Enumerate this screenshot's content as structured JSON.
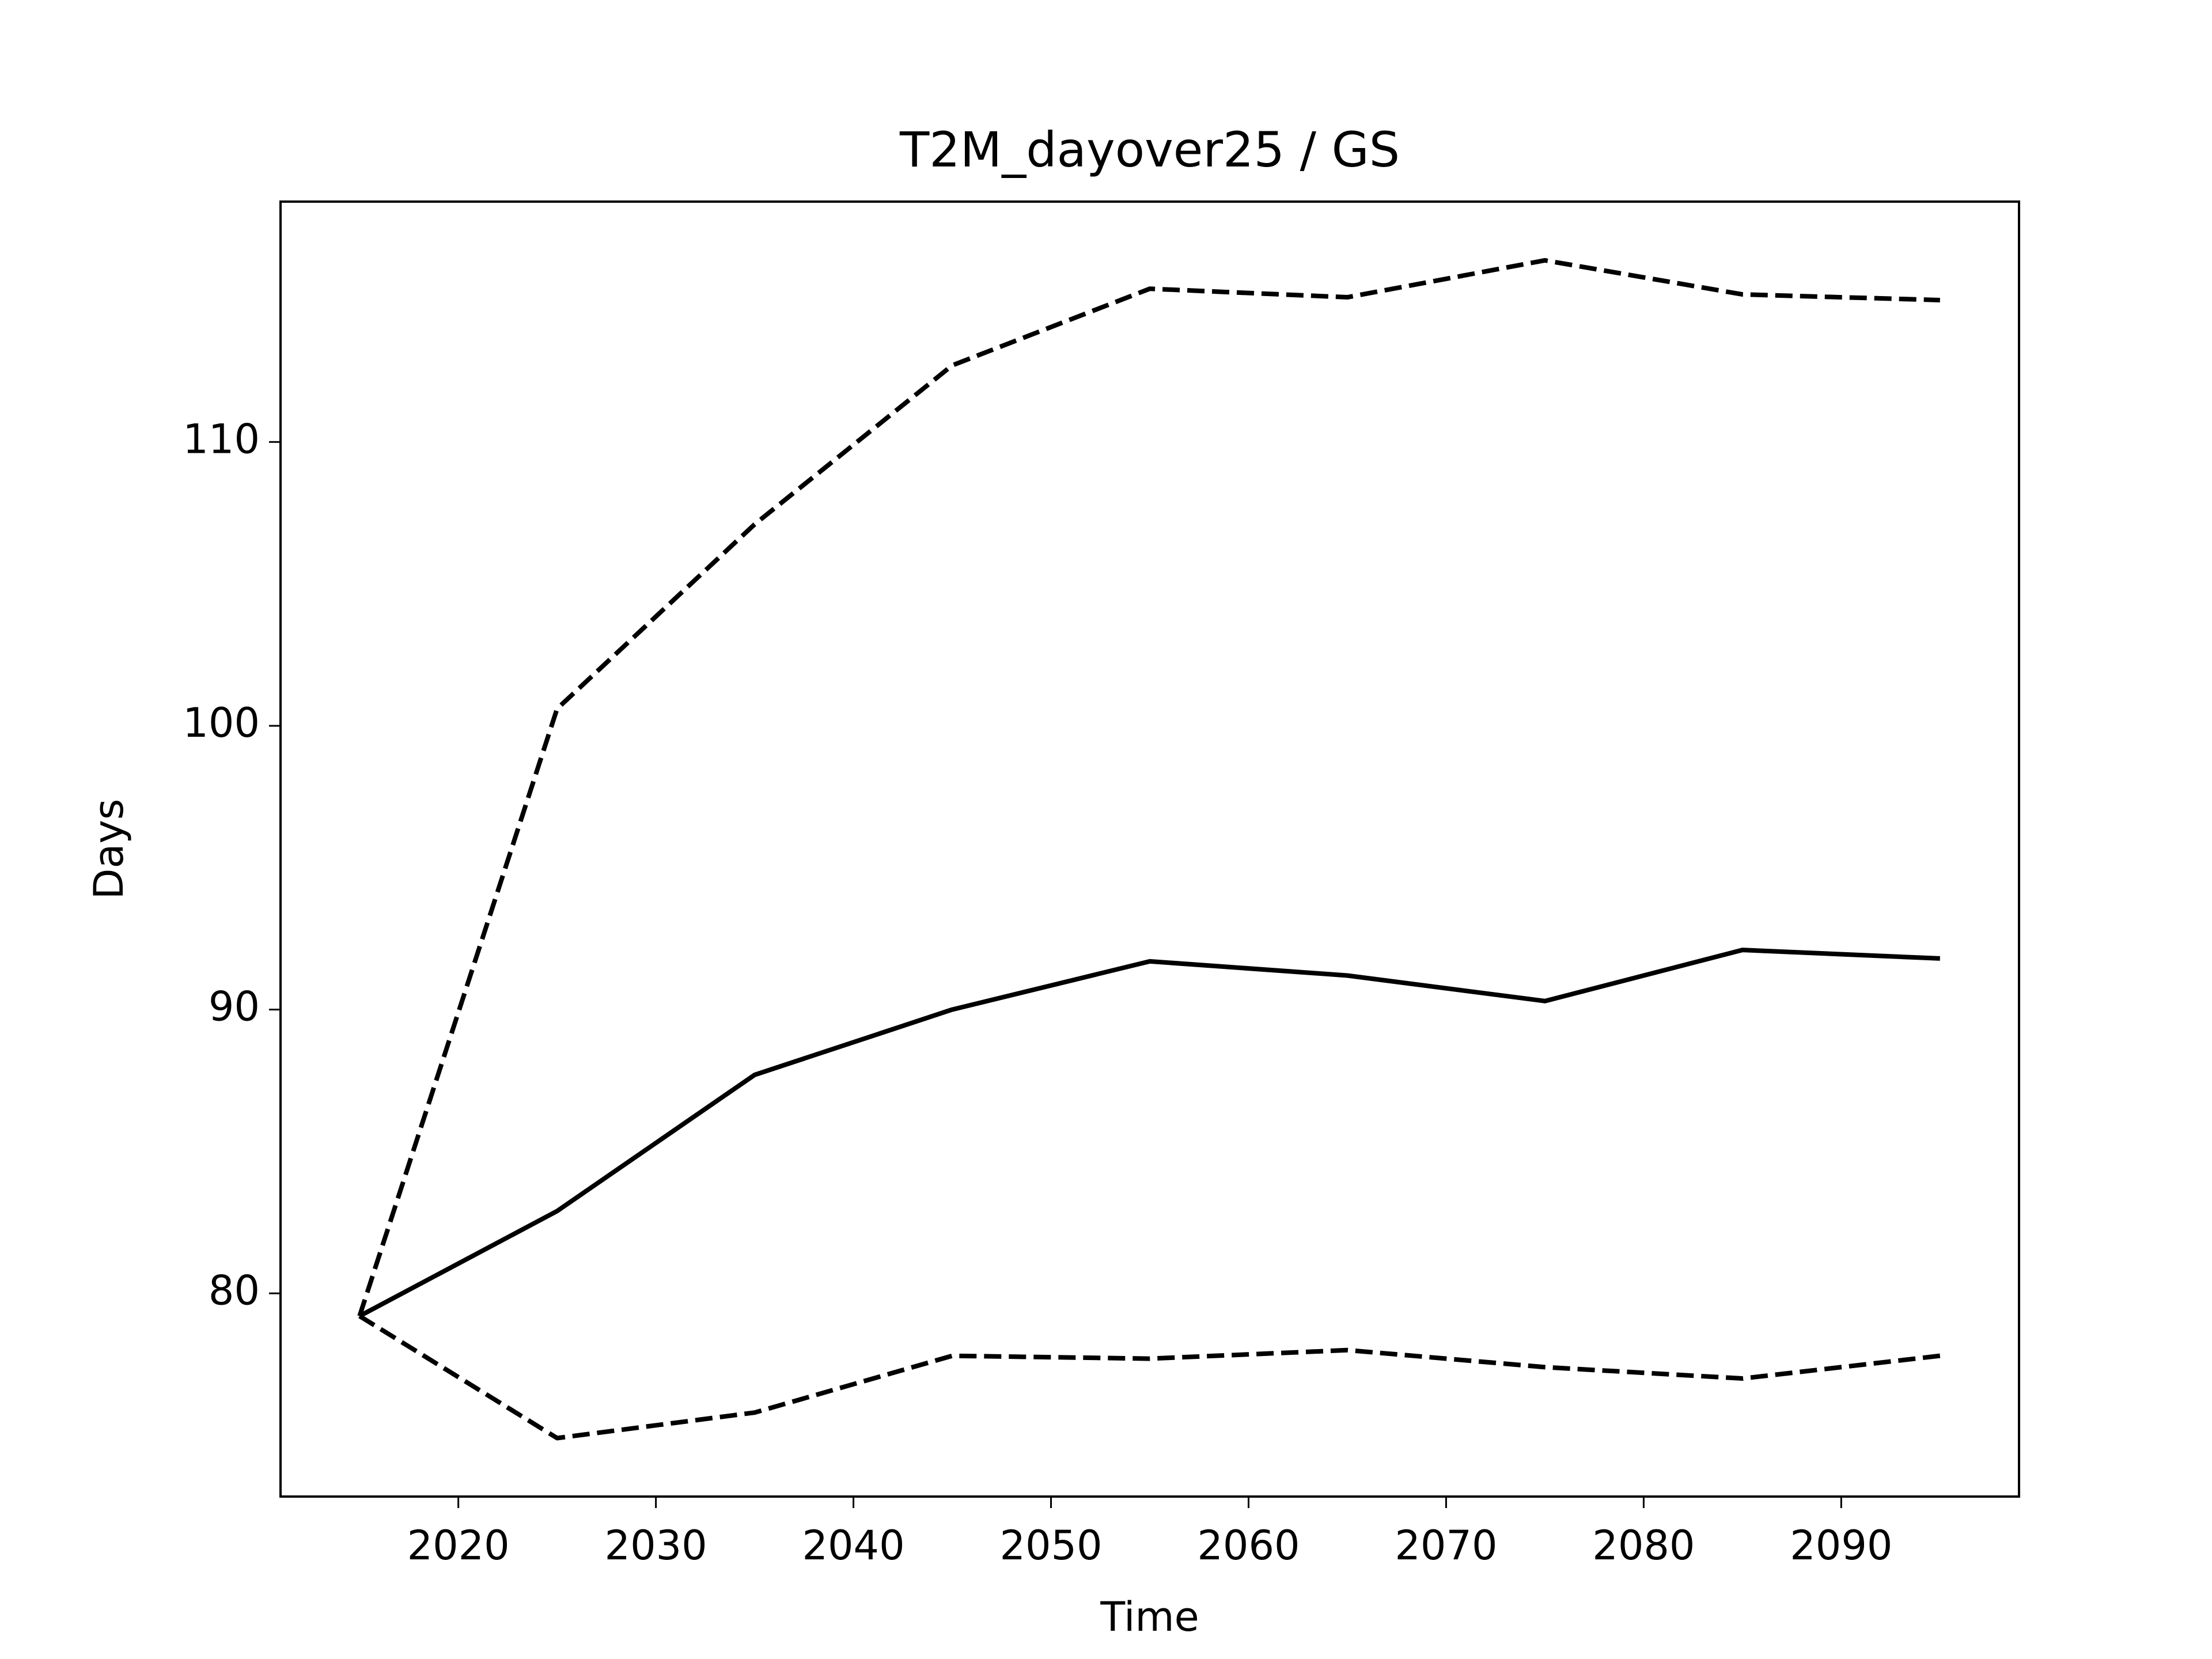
{
  "chart_data": {
    "type": "line",
    "title": "T2M_dayover25 / GS",
    "xlabel": "Time",
    "ylabel": "Days",
    "x": [
      2015,
      2025,
      2035,
      2045,
      2055,
      2065,
      2075,
      2085,
      2095
    ],
    "series": [
      {
        "color": "#000000",
        "linestyle": "solid",
        "values": [
          79.2,
          82.9,
          87.7,
          90.0,
          91.7,
          91.2,
          90.3,
          92.1,
          91.8
        ]
      },
      {
        "color": "#000000",
        "linestyle": "dashed",
        "values": [
          79.2,
          100.6,
          107.1,
          112.7,
          115.4,
          115.1,
          116.4,
          115.2,
          115.0
        ]
      },
      {
        "color": "#000000",
        "linestyle": "dashed",
        "values": [
          79.2,
          74.9,
          75.8,
          77.8,
          77.7,
          78.0,
          77.4,
          77.0,
          77.8
        ]
      }
    ],
    "xlim": [
      2011,
      2099
    ],
    "xticks": [
      2020,
      2030,
      2040,
      2050,
      2060,
      2070,
      2080,
      2090
    ],
    "ylim": [
      72.84,
      118.47
    ],
    "yticks": [
      80,
      90,
      100,
      110
    ],
    "grid": false
  }
}
